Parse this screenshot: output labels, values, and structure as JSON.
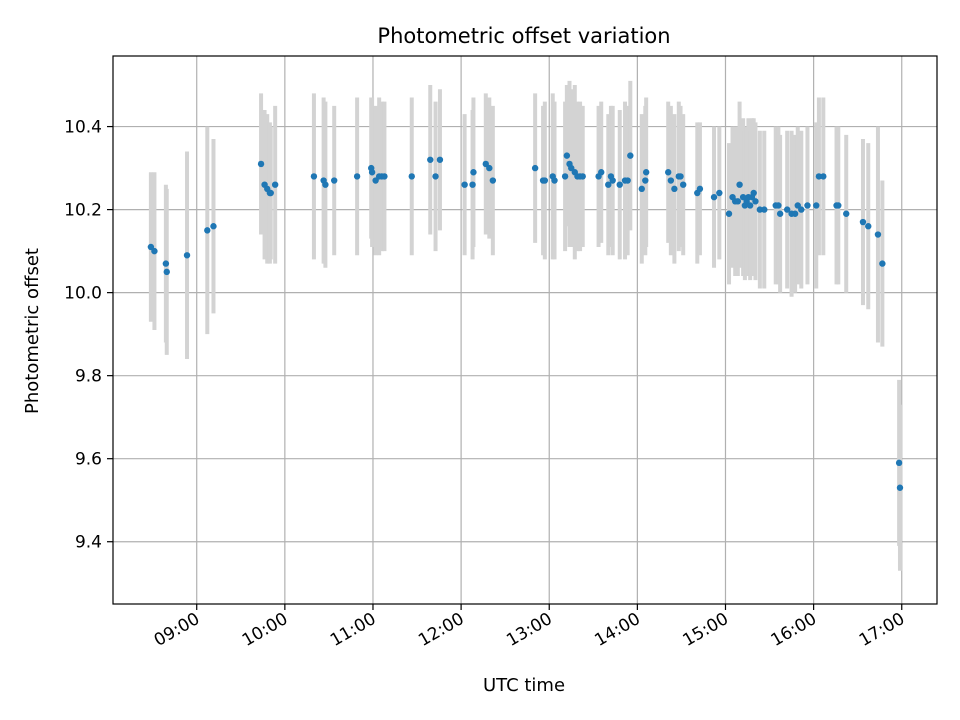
{
  "chart_data": {
    "type": "scatter",
    "title": "Photometric offset variation",
    "xlabel": "UTC time",
    "ylabel": "Photometric offset",
    "x_axis": "time (UTC, decimal hours)",
    "xlim": [
      8.05,
      17.4
    ],
    "ylim": [
      9.25,
      10.57
    ],
    "x_ticks": [
      9,
      10,
      11,
      12,
      13,
      14,
      15,
      16,
      17
    ],
    "x_tick_labels": [
      "09:00",
      "10:00",
      "11:00",
      "12:00",
      "13:00",
      "14:00",
      "15:00",
      "16:00",
      "17:00"
    ],
    "y_ticks": [
      9.4,
      9.6,
      9.8,
      10.0,
      10.2,
      10.4
    ],
    "y_tick_labels": [
      "9.4",
      "9.6",
      "9.8",
      "10.0",
      "10.2",
      "10.4"
    ],
    "grid": true,
    "legend": false,
    "colors": {
      "points": "#1f77b4",
      "error_bars": "#d3d3d3",
      "grid": "#b0b0b0"
    },
    "series": [
      {
        "x": [
          8.48,
          8.52,
          8.65,
          8.66,
          8.89,
          9.12,
          9.19,
          9.73,
          9.77,
          9.8,
          9.83,
          9.84,
          9.89,
          10.33,
          10.44,
          10.46,
          10.56,
          10.82,
          10.98,
          10.99,
          11.03,
          11.07,
          11.1,
          11.13,
          11.44,
          11.65,
          11.71,
          11.76,
          12.04,
          12.13,
          12.14,
          12.28,
          12.32,
          12.36,
          12.84,
          12.93,
          12.95,
          13.04,
          13.06,
          13.18,
          13.2,
          13.23,
          13.25,
          13.29,
          13.32,
          13.35,
          13.38,
          13.56,
          13.59,
          13.67,
          13.7,
          13.72,
          13.8,
          13.86,
          13.89,
          13.92,
          14.05,
          14.09,
          14.1,
          14.35,
          14.38,
          14.42,
          14.47,
          14.49,
          14.52,
          14.68,
          14.71,
          14.87,
          14.93,
          15.04,
          15.08,
          15.11,
          15.14,
          15.16,
          15.2,
          15.22,
          15.24,
          15.26,
          15.28,
          15.3,
          15.32,
          15.34,
          15.39,
          15.44,
          15.57,
          15.6,
          15.62,
          15.7,
          15.75,
          15.79,
          15.82,
          15.86,
          15.93,
          16.03,
          16.06,
          16.11,
          16.26,
          16.28,
          16.37,
          16.56,
          16.62,
          16.73,
          16.78,
          16.97,
          16.98
        ],
        "y": [
          10.11,
          10.1,
          10.07,
          10.05,
          10.09,
          10.15,
          10.16,
          10.31,
          10.26,
          10.25,
          10.24,
          10.24,
          10.26,
          10.28,
          10.27,
          10.26,
          10.27,
          10.28,
          10.3,
          10.29,
          10.27,
          10.28,
          10.28,
          10.28,
          10.28,
          10.32,
          10.28,
          10.32,
          10.26,
          10.26,
          10.29,
          10.31,
          10.3,
          10.27,
          10.3,
          10.27,
          10.27,
          10.28,
          10.27,
          10.28,
          10.33,
          10.31,
          10.3,
          10.29,
          10.28,
          10.28,
          10.28,
          10.28,
          10.29,
          10.26,
          10.28,
          10.27,
          10.26,
          10.27,
          10.27,
          10.33,
          10.25,
          10.27,
          10.29,
          10.29,
          10.27,
          10.25,
          10.28,
          10.28,
          10.26,
          10.24,
          10.25,
          10.23,
          10.24,
          10.19,
          10.23,
          10.22,
          10.22,
          10.26,
          10.23,
          10.21,
          10.22,
          10.23,
          10.21,
          10.23,
          10.24,
          10.22,
          10.2,
          10.2,
          10.21,
          10.21,
          10.19,
          10.2,
          10.19,
          10.19,
          10.21,
          10.2,
          10.21,
          10.21,
          10.28,
          10.28,
          10.21,
          10.21,
          10.19,
          10.17,
          10.16,
          10.14,
          10.07,
          9.59,
          9.53
        ],
        "err": [
          0.18,
          0.19,
          0.19,
          0.2,
          0.25,
          0.25,
          0.21,
          0.17,
          0.18,
          0.18,
          0.17,
          0.16,
          0.19,
          0.2,
          0.2,
          0.2,
          0.18,
          0.19,
          0.17,
          0.18,
          0.18,
          0.19,
          0.18,
          0.18,
          0.19,
          0.18,
          0.18,
          0.17,
          0.17,
          0.18,
          0.18,
          0.17,
          0.17,
          0.18,
          0.18,
          0.18,
          0.19,
          0.2,
          0.19,
          0.18,
          0.17,
          0.2,
          0.19,
          0.21,
          0.18,
          0.18,
          0.17,
          0.17,
          0.17,
          0.17,
          0.17,
          0.18,
          0.18,
          0.19,
          0.18,
          0.18,
          0.18,
          0.18,
          0.18,
          0.17,
          0.18,
          0.18,
          0.18,
          0.17,
          0.17,
          0.17,
          0.16,
          0.17,
          0.16,
          0.17,
          0.17,
          0.18,
          0.18,
          0.2,
          0.19,
          0.18,
          0.18,
          0.19,
          0.18,
          0.19,
          0.18,
          0.19,
          0.19,
          0.19,
          0.19,
          0.19,
          0.19,
          0.19,
          0.2,
          0.19,
          0.19,
          0.19,
          0.19,
          0.2,
          0.19,
          0.19,
          0.19,
          0.19,
          0.19,
          0.2,
          0.2,
          0.26,
          0.2,
          0.2,
          0.2
        ]
      }
    ]
  }
}
